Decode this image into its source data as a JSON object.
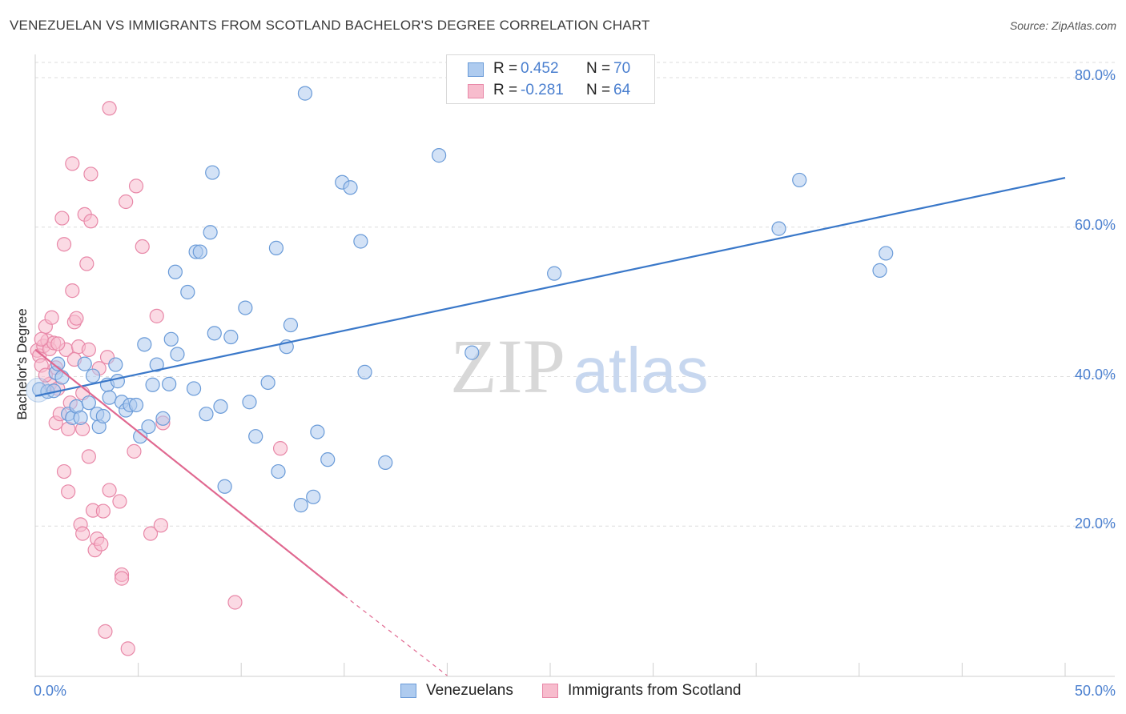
{
  "title": "VENEZUELAN VS IMMIGRANTS FROM SCOTLAND BACHELOR'S DEGREE CORRELATION CHART",
  "source": "Source: ZipAtlas.com",
  "watermark": {
    "zip": "ZIP",
    "atlas": "atlas"
  },
  "legend_stats": [
    {
      "r_label": "R =",
      "r_value": "0.452",
      "n_label": "N =",
      "n_value": "70"
    },
    {
      "r_label": "R =",
      "r_value": "-0.281",
      "n_label": "N =",
      "n_value": "64"
    }
  ],
  "colors": {
    "blue_fill": "#aecbef",
    "blue_stroke": "#6a9bd8",
    "blue_line": "#3a78c9",
    "pink_fill": "#f7bccd",
    "pink_stroke": "#e888a8",
    "pink_line": "#e06890",
    "grid": "#dddddd",
    "tick_text": "#4a7fcf"
  },
  "chart_data": {
    "type": "scatter",
    "title": "VENEZUELAN VS IMMIGRANTS FROM SCOTLAND BACHELOR'S DEGREE CORRELATION CHART",
    "xlabel": "",
    "ylabel": "Bachelor's Degree",
    "xlim": [
      0,
      50
    ],
    "ylim": [
      0,
      80
    ],
    "x_tick_labels": [
      "0.0%",
      "50.0%"
    ],
    "y_tick_labels": [
      "20.0%",
      "40.0%",
      "60.0%",
      "80.0%"
    ],
    "y_ticks": [
      20,
      40,
      60,
      80
    ],
    "grid": true,
    "legend": [
      "Venezuelans",
      "Immigrants from Scotland"
    ],
    "series": [
      {
        "name": "Venezuelans",
        "color": "#6a9bd8",
        "points": [
          [
            0.2,
            38.3
          ],
          [
            0.6,
            38.0
          ],
          [
            0.9,
            38.1
          ],
          [
            1.0,
            40.5
          ],
          [
            1.1,
            41.7
          ],
          [
            1.3,
            39.9
          ],
          [
            1.6,
            35.0
          ],
          [
            1.8,
            34.5
          ],
          [
            2.0,
            36.0
          ],
          [
            2.2,
            34.5
          ],
          [
            2.4,
            41.7
          ],
          [
            2.6,
            36.5
          ],
          [
            2.8,
            40.1
          ],
          [
            3.0,
            35.0
          ],
          [
            3.1,
            33.3
          ],
          [
            3.3,
            34.7
          ],
          [
            3.5,
            38.9
          ],
          [
            3.6,
            37.2
          ],
          [
            3.9,
            41.6
          ],
          [
            4.0,
            39.4
          ],
          [
            4.2,
            36.6
          ],
          [
            4.4,
            35.5
          ],
          [
            4.6,
            36.2
          ],
          [
            4.9,
            36.2
          ],
          [
            5.1,
            32.0
          ],
          [
            5.3,
            44.3
          ],
          [
            5.5,
            33.3
          ],
          [
            5.7,
            38.9
          ],
          [
            5.9,
            41.6
          ],
          [
            6.2,
            34.4
          ],
          [
            6.5,
            39.0
          ],
          [
            6.6,
            45.0
          ],
          [
            6.8,
            54.0
          ],
          [
            6.9,
            43.0
          ],
          [
            7.4,
            51.3
          ],
          [
            7.7,
            38.4
          ],
          [
            7.8,
            56.7
          ],
          [
            8.0,
            56.7
          ],
          [
            8.3,
            35.0
          ],
          [
            8.5,
            59.3
          ],
          [
            8.6,
            67.3
          ],
          [
            8.7,
            45.8
          ],
          [
            9.0,
            36.0
          ],
          [
            9.2,
            25.3
          ],
          [
            9.5,
            45.3
          ],
          [
            10.2,
            49.2
          ],
          [
            10.4,
            36.6
          ],
          [
            10.7,
            32.0
          ],
          [
            11.3,
            39.2
          ],
          [
            11.7,
            57.2
          ],
          [
            11.8,
            27.3
          ],
          [
            12.2,
            44.0
          ],
          [
            12.4,
            46.9
          ],
          [
            12.9,
            22.8
          ],
          [
            13.1,
            77.9
          ],
          [
            13.5,
            23.9
          ],
          [
            13.7,
            32.6
          ],
          [
            14.2,
            28.9
          ],
          [
            14.9,
            66.0
          ],
          [
            15.3,
            65.3
          ],
          [
            15.8,
            58.1
          ],
          [
            16.0,
            40.6
          ],
          [
            17.0,
            28.5
          ],
          [
            19.6,
            69.6
          ],
          [
            21.2,
            43.2
          ],
          [
            25.2,
            53.8
          ],
          [
            36.1,
            59.8
          ],
          [
            37.1,
            66.3
          ],
          [
            41.0,
            54.2
          ],
          [
            41.3,
            56.5
          ]
        ]
      },
      {
        "name": "Immigrants from Scotland",
        "color": "#e888a8",
        "points": [
          [
            0.1,
            43.5
          ],
          [
            0.2,
            42.8
          ],
          [
            0.3,
            41.5
          ],
          [
            0.4,
            44.1
          ],
          [
            0.5,
            46.7
          ],
          [
            0.6,
            44.8
          ],
          [
            0.7,
            39.0
          ],
          [
            0.7,
            43.7
          ],
          [
            0.8,
            47.9
          ],
          [
            0.9,
            44.5
          ],
          [
            1.0,
            41.2
          ],
          [
            1.0,
            33.8
          ],
          [
            1.1,
            38.4
          ],
          [
            1.2,
            35.0
          ],
          [
            1.3,
            61.2
          ],
          [
            1.4,
            27.3
          ],
          [
            1.4,
            57.7
          ],
          [
            1.5,
            43.6
          ],
          [
            1.6,
            24.6
          ],
          [
            1.7,
            36.5
          ],
          [
            1.8,
            68.5
          ],
          [
            1.8,
            51.5
          ],
          [
            1.9,
            47.3
          ],
          [
            2.0,
            47.8
          ],
          [
            2.1,
            44.0
          ],
          [
            2.2,
            20.2
          ],
          [
            2.3,
            33.0
          ],
          [
            2.3,
            19.0
          ],
          [
            2.4,
            61.7
          ],
          [
            2.5,
            55.1
          ],
          [
            2.6,
            29.3
          ],
          [
            2.6,
            43.6
          ],
          [
            2.7,
            67.1
          ],
          [
            2.7,
            60.8
          ],
          [
            2.8,
            22.1
          ],
          [
            2.9,
            16.8
          ],
          [
            3.0,
            18.3
          ],
          [
            3.1,
            41.1
          ],
          [
            3.2,
            17.6
          ],
          [
            3.3,
            22.0
          ],
          [
            3.4,
            5.9
          ],
          [
            3.5,
            42.6
          ],
          [
            3.6,
            24.8
          ],
          [
            3.6,
            75.9
          ],
          [
            4.1,
            23.3
          ],
          [
            4.2,
            13.5
          ],
          [
            4.2,
            13.0
          ],
          [
            4.4,
            63.4
          ],
          [
            4.5,
            3.6
          ],
          [
            4.8,
            30.0
          ],
          [
            4.9,
            65.5
          ],
          [
            5.2,
            57.4
          ],
          [
            5.6,
            19.0
          ],
          [
            5.9,
            48.1
          ],
          [
            6.1,
            20.1
          ],
          [
            6.2,
            33.8
          ],
          [
            9.7,
            9.8
          ],
          [
            11.9,
            30.4
          ],
          [
            0.3,
            45.0
          ],
          [
            0.5,
            40.2
          ],
          [
            1.1,
            44.4
          ],
          [
            1.6,
            33.0
          ],
          [
            2.3,
            37.8
          ],
          [
            1.9,
            42.3
          ]
        ]
      }
    ],
    "trend_lines": [
      {
        "name": "Venezuelans",
        "x": [
          0,
          50
        ],
        "y": [
          37.4,
          66.6
        ],
        "style": "solid"
      },
      {
        "name": "Immigrants from Scotland",
        "x": [
          0,
          15
        ],
        "y": [
          43.6,
          10.7
        ],
        "style": "solid",
        "dashed_extension": {
          "x": [
            15,
            20
          ],
          "y": [
            10.7,
            0
          ]
        }
      }
    ]
  }
}
